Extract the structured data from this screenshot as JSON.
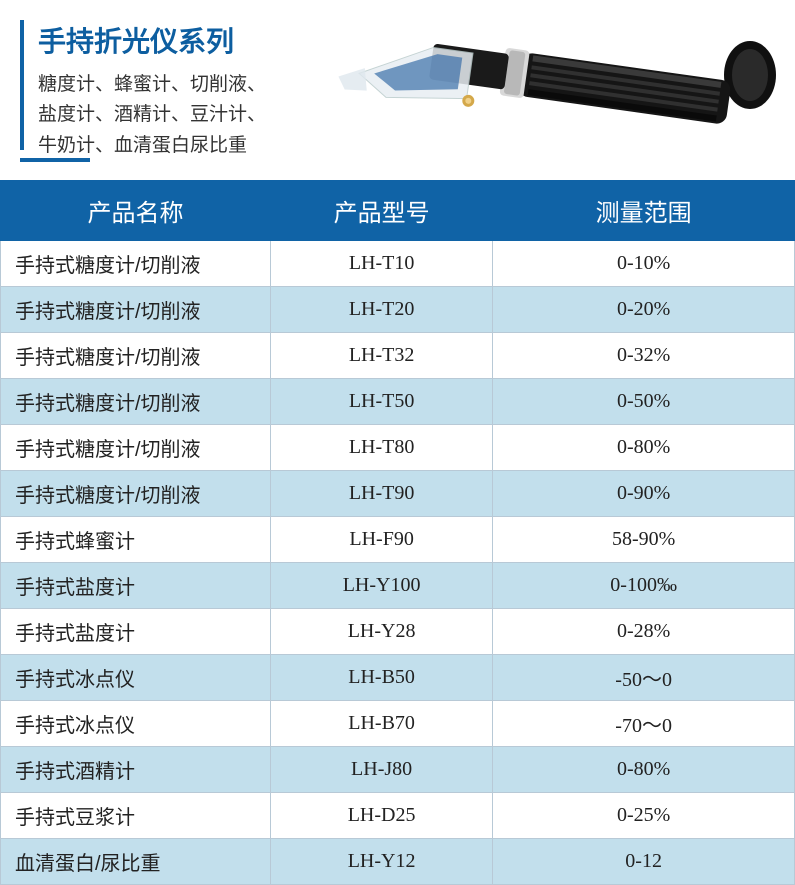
{
  "header": {
    "title": "手持折光仪系列",
    "subtitle_lines": [
      "糖度计、蜂蜜计、切削液、",
      "盐度计、酒精计、豆汁计、",
      "牛奶计、血清蛋白尿比重"
    ],
    "title_color": "#0d5ea0",
    "accent_color": "#1063a6"
  },
  "table": {
    "header_bg": "#1063a6",
    "header_text_color": "#ffffff",
    "row_alt_bg": "#c2dfec",
    "row_bg": "#ffffff",
    "border_color": "#b8c9d6",
    "columns": [
      "产品名称",
      "产品型号",
      "测量范围"
    ],
    "rows": [
      [
        "手持式糖度计/切削液",
        "LH-T10",
        "0-10%"
      ],
      [
        "手持式糖度计/切削液",
        "LH-T20",
        "0-20%"
      ],
      [
        "手持式糖度计/切削液",
        "LH-T32",
        "0-32%"
      ],
      [
        "手持式糖度计/切削液",
        "LH-T50",
        "0-50%"
      ],
      [
        "手持式糖度计/切削液",
        "LH-T80",
        "0-80%"
      ],
      [
        "手持式糖度计/切削液",
        "LH-T90",
        "0-90%"
      ],
      [
        "手持式蜂蜜计",
        "LH-F90",
        "58-90%"
      ],
      [
        "手持式盐度计",
        "LH-Y100",
        "0-100‰"
      ],
      [
        "手持式盐度计",
        "LH-Y28",
        "0-28%"
      ],
      [
        "手持式冰点仪",
        "LH-B50",
        "-50～0"
      ],
      [
        "手持式冰点仪",
        "LH-B70",
        "-70～0"
      ],
      [
        "手持式酒精计",
        "LH-J80",
        "0-80%"
      ],
      [
        "手持式豆浆计",
        "LH-D25",
        "0-25%"
      ],
      [
        "血清蛋白/尿比重",
        "LH-Y12",
        "0-12"
      ]
    ]
  },
  "device": {
    "body_color": "#1a1a1a",
    "grip_highlight": "#4a4a4a",
    "ring_color": "#c8c8c8",
    "prism_cover": "#e8eef3",
    "prism_blue": "#3a6fa8"
  }
}
